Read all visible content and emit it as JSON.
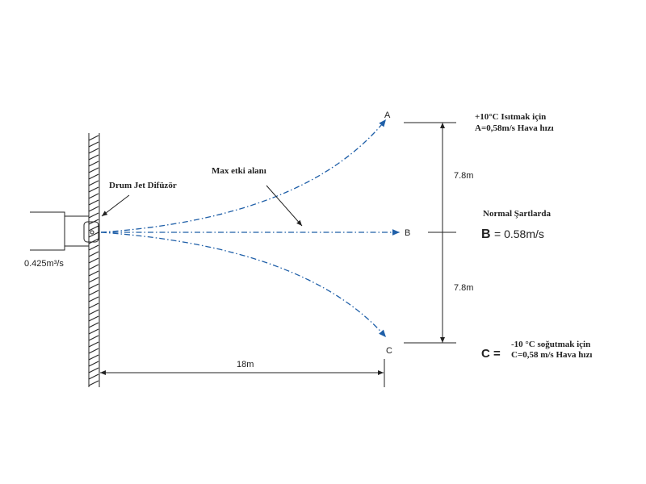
{
  "labels": {
    "diffuser": "Drum Jet Difüzör",
    "max_area": "Max etki alanı",
    "flow": "0.425m³/s",
    "distance": "18m"
  },
  "points": [
    {
      "label": "A"
    },
    {
      "label": "B"
    },
    {
      "label": "C"
    }
  ],
  "heights": [
    "7.8m",
    "7.8m"
  ],
  "notes": {
    "a": {
      "line1": "+10°C Isıtmak için",
      "line2": "A=0,58m/s Hava hızı"
    },
    "normal": "Normal Şartlarda",
    "b": {
      "key": "B",
      "text": "= 0.58m/s"
    },
    "c": {
      "key": "C =",
      "line1": "-10 °C soğutmak için",
      "line2": "C=0,58 m/s Hava hızı"
    }
  }
}
